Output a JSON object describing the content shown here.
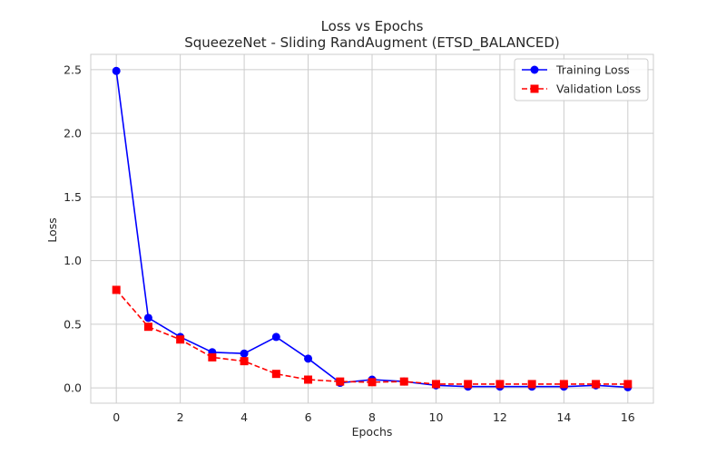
{
  "chart_data": {
    "type": "line",
    "title": "Loss vs Epochs",
    "subtitle": "SqueezeNet - Sliding RandAugment (ETSD_BALANCED)",
    "xlabel": "Epochs",
    "ylabel": "Loss",
    "xlim": [
      -0.8,
      16.8
    ],
    "ylim": [
      -0.12,
      2.62
    ],
    "xticks": [
      0,
      2,
      4,
      6,
      8,
      10,
      12,
      14,
      16
    ],
    "xtick_labels": [
      "0",
      "2",
      "4",
      "6",
      "8",
      "10",
      "12",
      "14",
      "16"
    ],
    "yticks": [
      0.0,
      0.5,
      1.0,
      1.5,
      2.0,
      2.5
    ],
    "ytick_labels": [
      "0.0",
      "0.5",
      "1.0",
      "1.5",
      "2.0",
      "2.5"
    ],
    "grid": true,
    "legend_position": "top-right",
    "x": [
      0,
      1,
      2,
      3,
      4,
      5,
      6,
      7,
      8,
      9,
      10,
      11,
      12,
      13,
      14,
      15,
      16
    ],
    "series": [
      {
        "name": "Training Loss",
        "color": "#0000ff",
        "marker": "circle",
        "linestyle": "solid",
        "values": [
          2.49,
          0.55,
          0.4,
          0.28,
          0.27,
          0.4,
          0.23,
          0.04,
          0.065,
          0.05,
          0.02,
          0.01,
          0.01,
          0.01,
          0.01,
          0.02,
          0.005
        ]
      },
      {
        "name": "Validation Loss",
        "color": "#ff0000",
        "marker": "square",
        "linestyle": "dashed",
        "values": [
          0.77,
          0.48,
          0.38,
          0.24,
          0.21,
          0.11,
          0.065,
          0.05,
          0.045,
          0.05,
          0.03,
          0.03,
          0.03,
          0.03,
          0.03,
          0.03,
          0.03
        ]
      }
    ]
  }
}
